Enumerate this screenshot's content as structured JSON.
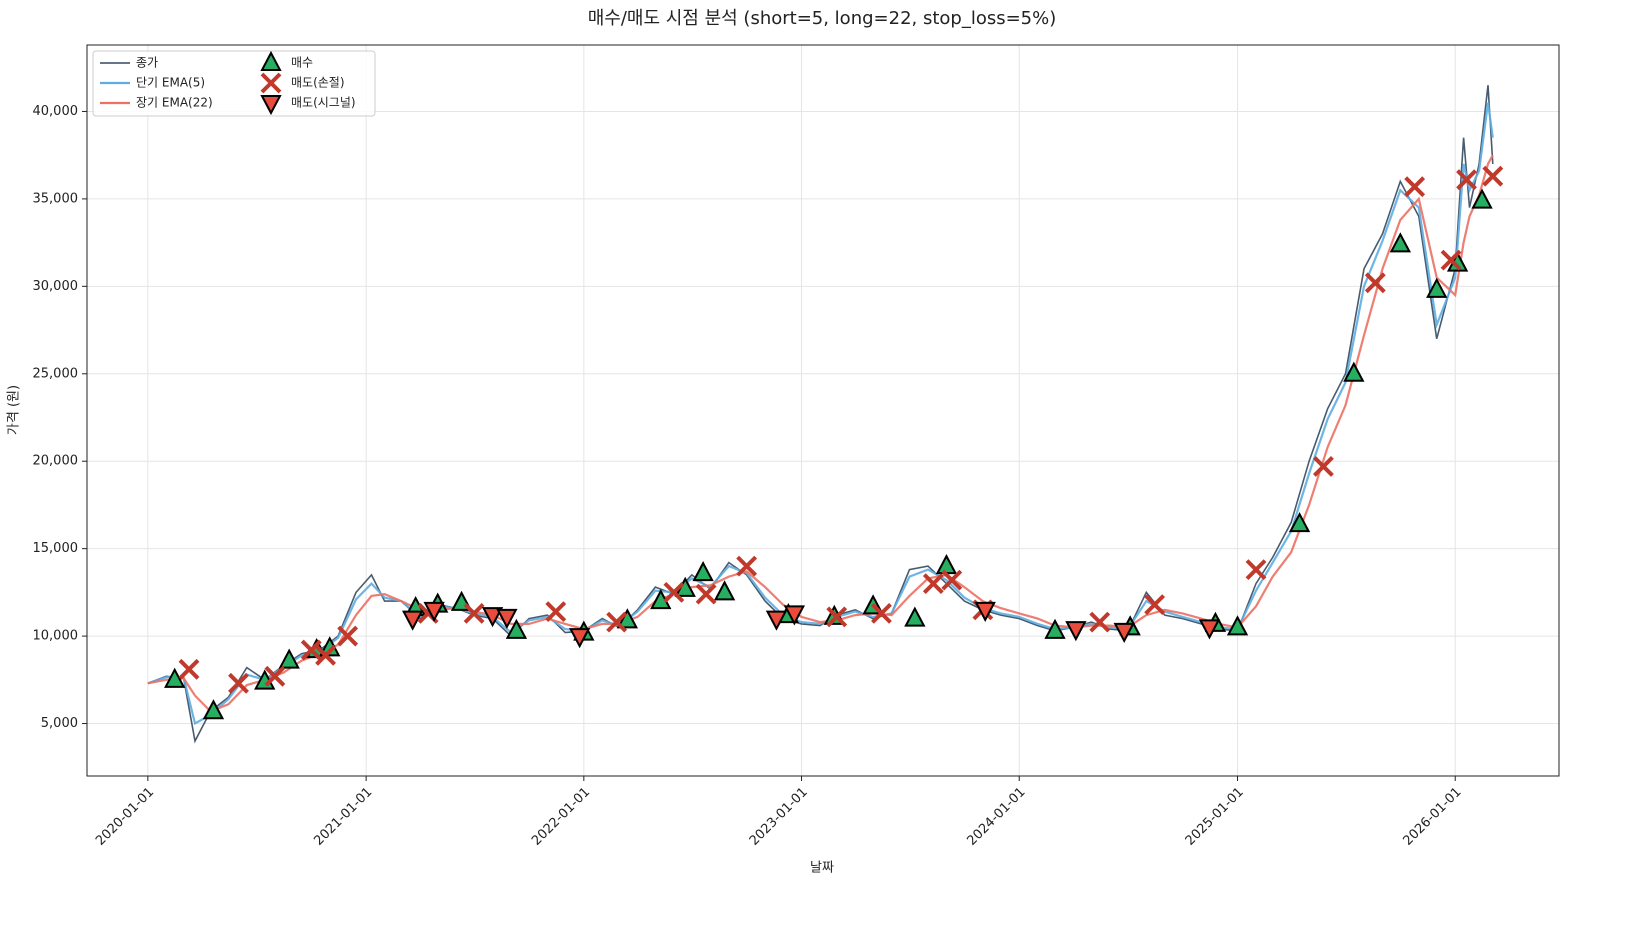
{
  "chart_data": {
    "type": "line",
    "title": "매수/매도 시점 분석 (short=5, long=22, stop_loss=5%)",
    "x_label": "날짜",
    "y_label": "가격 (원)",
    "grid": true,
    "legend": "upper left",
    "xlim": [
      "2019-09-21",
      "2026-06-24"
    ],
    "xticks": [
      "2020-01-01",
      "2021-01-01",
      "2022-01-01",
      "2023-01-01",
      "2024-01-01",
      "2025-01-01",
      "2026-01-01"
    ],
    "ylim": [
      2000,
      43800
    ],
    "yticks": [
      {
        "value": 5000,
        "label": "5,000"
      },
      {
        "value": 10000,
        "label": "10,000"
      },
      {
        "value": 15000,
        "label": "15,000"
      },
      {
        "value": 20000,
        "label": "20,000"
      },
      {
        "value": 25000,
        "label": "25,000"
      },
      {
        "value": 30000,
        "label": "30,000"
      },
      {
        "value": 35000,
        "label": "35,000"
      },
      {
        "value": 40000,
        "label": "40,000"
      }
    ],
    "x": [
      "2020-01-01",
      "2020-02-01",
      "2020-03-01",
      "2020-03-20",
      "2020-04-15",
      "2020-05-15",
      "2020-06-15",
      "2020-07-15",
      "2020-08-15",
      "2020-09-15",
      "2020-10-15",
      "2020-11-15",
      "2020-12-15",
      "2021-01-10",
      "2021-02-01",
      "2021-03-01",
      "2021-04-01",
      "2021-05-01",
      "2021-06-01",
      "2021-07-01",
      "2021-08-01",
      "2021-09-01",
      "2021-10-01",
      "2021-11-01",
      "2021-12-01",
      "2022-01-01",
      "2022-02-01",
      "2022-03-01",
      "2022-04-01",
      "2022-05-01",
      "2022-06-01",
      "2022-07-01",
      "2022-08-01",
      "2022-09-01",
      "2022-10-01",
      "2022-11-01",
      "2022-12-01",
      "2023-01-01",
      "2023-02-01",
      "2023-03-01",
      "2023-04-01",
      "2023-05-01",
      "2023-06-01",
      "2023-07-01",
      "2023-08-01",
      "2023-09-01",
      "2023-10-01",
      "2023-11-01",
      "2023-12-01",
      "2024-01-01",
      "2024-02-01",
      "2024-03-01",
      "2024-04-01",
      "2024-05-01",
      "2024-06-01",
      "2024-07-01",
      "2024-08-01",
      "2024-09-01",
      "2024-10-01",
      "2024-11-01",
      "2024-12-01",
      "2025-01-01",
      "2025-02-01",
      "2025-03-01",
      "2025-04-01",
      "2025-05-01",
      "2025-06-01",
      "2025-07-01",
      "2025-08-01",
      "2025-09-01",
      "2025-10-01",
      "2025-11-01",
      "2025-12-01",
      "2026-01-01",
      "2026-01-15",
      "2026-01-25",
      "2026-02-10",
      "2026-02-25",
      "2026-03-05"
    ],
    "series": [
      {
        "name": "종가",
        "color": "#34495e",
        "width": 1.6,
        "values": [
          7300,
          7700,
          7600,
          4000,
          5700,
          6500,
          8200,
          7500,
          8300,
          9000,
          9200,
          10000,
          12500,
          13500,
          12000,
          12000,
          11000,
          11800,
          11600,
          11200,
          11000,
          10000,
          11000,
          11200,
          10200,
          10300,
          11000,
          10500,
          11500,
          12800,
          12400,
          13500,
          12700,
          14200,
          13500,
          12000,
          11000,
          10700,
          10600,
          11200,
          11500,
          11000,
          11300,
          13800,
          14000,
          13000,
          12000,
          11500,
          11200,
          11000,
          10600,
          10300,
          10500,
          10800,
          10400,
          10300,
          12500,
          11200,
          11000,
          10700,
          10400,
          10300,
          13000,
          14500,
          16500,
          20000,
          23000,
          25000,
          31000,
          33000,
          36000,
          34000,
          27000,
          31000,
          38500,
          34500,
          37000,
          41500,
          37000
        ]
      },
      {
        "name": "단기 EMA(5)",
        "color": "#5dade2",
        "width": 2.2,
        "values": [
          7300,
          7650,
          7650,
          5000,
          5500,
          6400,
          7800,
          7500,
          8200,
          8900,
          9100,
          9900,
          12100,
          13000,
          12200,
          12000,
          11100,
          11700,
          11600,
          11300,
          11100,
          10200,
          10900,
          11100,
          10400,
          10300,
          10900,
          10600,
          11400,
          12600,
          12500,
          13300,
          12800,
          14000,
          13600,
          12200,
          11200,
          10800,
          10700,
          11100,
          11400,
          11100,
          11300,
          13400,
          13800,
          13200,
          12200,
          11600,
          11300,
          11100,
          10700,
          10400,
          10500,
          10700,
          10500,
          10400,
          12000,
          11400,
          11100,
          10800,
          10500,
          10400,
          12600,
          14200,
          16000,
          19300,
          22400,
          24500,
          30000,
          32600,
          35500,
          34500,
          27800,
          30500,
          37000,
          35500,
          36600,
          40500,
          38500
        ]
      },
      {
        "name": "장기 EMA(22)",
        "color": "#ec7063",
        "width": 2.2,
        "values": [
          7300,
          7500,
          7600,
          6600,
          5700,
          6100,
          7200,
          7500,
          7900,
          8600,
          9000,
          9500,
          11200,
          12300,
          12400,
          12000,
          11500,
          11500,
          11600,
          11400,
          11200,
          10700,
          10700,
          11000,
          10700,
          10400,
          10700,
          10700,
          11100,
          12000,
          12400,
          12800,
          12900,
          13400,
          13700,
          12800,
          11800,
          11100,
          10800,
          10900,
          11200,
          11300,
          11200,
          12300,
          13300,
          13500,
          12800,
          12000,
          11600,
          11300,
          11000,
          10600,
          10500,
          10600,
          10600,
          10500,
          11200,
          11500,
          11300,
          11000,
          10700,
          10500,
          11700,
          13400,
          14800,
          17500,
          20800,
          23200,
          27200,
          31000,
          33800,
          35000,
          30500,
          29500,
          32500,
          34000,
          35200,
          37000,
          37500
        ]
      },
      {
        "name": "매수",
        "marker": "^",
        "color": "#27ae60",
        "x": [
          "2020-02-15",
          "2020-04-20",
          "2020-07-15",
          "2020-08-25",
          "2020-10-10",
          "2020-11-01",
          "2021-03-25",
          "2021-05-01",
          "2021-06-10",
          "2021-09-10",
          "2022-01-01",
          "2022-03-15",
          "2022-05-10",
          "2022-06-20",
          "2022-07-20",
          "2022-08-25",
          "2022-12-10",
          "2023-02-25",
          "2023-05-01",
          "2023-07-10",
          "2023-09-01",
          "2024-03-01",
          "2024-07-05",
          "2024-11-25",
          "2025-01-01",
          "2025-04-15",
          "2025-07-15",
          "2025-10-01",
          "2025-12-01",
          "2026-01-05",
          "2026-02-15"
        ],
        "values": [
          7500,
          5700,
          7400,
          8600,
          9200,
          9300,
          11600,
          11800,
          11900,
          10300,
          10200,
          10900,
          12000,
          12700,
          13600,
          12500,
          11200,
          11100,
          11700,
          11000,
          14000,
          10300,
          10500,
          10700,
          10500,
          16400,
          25000,
          32400,
          29800,
          31300,
          34900
        ]
      },
      {
        "name": "매도(손절)",
        "marker": "x",
        "color": "#c0392b",
        "x": [
          "2020-03-10",
          "2020-06-01",
          "2020-08-01",
          "2020-10-01",
          "2020-10-25",
          "2020-12-01",
          "2021-04-15",
          "2021-07-01",
          "2021-11-15",
          "2022-02-25",
          "2022-06-01",
          "2022-07-25",
          "2022-10-01",
          "2023-03-01",
          "2023-05-15",
          "2023-08-10",
          "2023-09-10",
          "2023-11-01",
          "2024-05-15",
          "2024-08-15",
          "2025-02-01",
          "2025-05-25",
          "2025-08-20",
          "2025-10-25",
          "2025-12-25",
          "2026-01-20",
          "2026-03-05"
        ],
        "values": [
          8100,
          7300,
          7700,
          9200,
          8900,
          10000,
          11300,
          11300,
          11400,
          10800,
          12500,
          12400,
          14000,
          11100,
          11300,
          13000,
          13200,
          11500,
          10800,
          11800,
          13800,
          19700,
          30200,
          35700,
          31500,
          36100,
          36300
        ]
      },
      {
        "name": "매도(시그널)",
        "marker": "v",
        "color": "#e74c3c",
        "x": [
          "2021-03-20",
          "2021-04-25",
          "2021-08-01",
          "2021-08-25",
          "2021-12-25",
          "2022-11-20",
          "2022-12-20",
          "2023-11-05",
          "2024-04-05",
          "2024-06-25",
          "2024-11-15"
        ],
        "values": [
          11000,
          11500,
          11200,
          11100,
          10000,
          11000,
          11300,
          11500,
          10400,
          10300,
          10500
        ]
      }
    ]
  }
}
